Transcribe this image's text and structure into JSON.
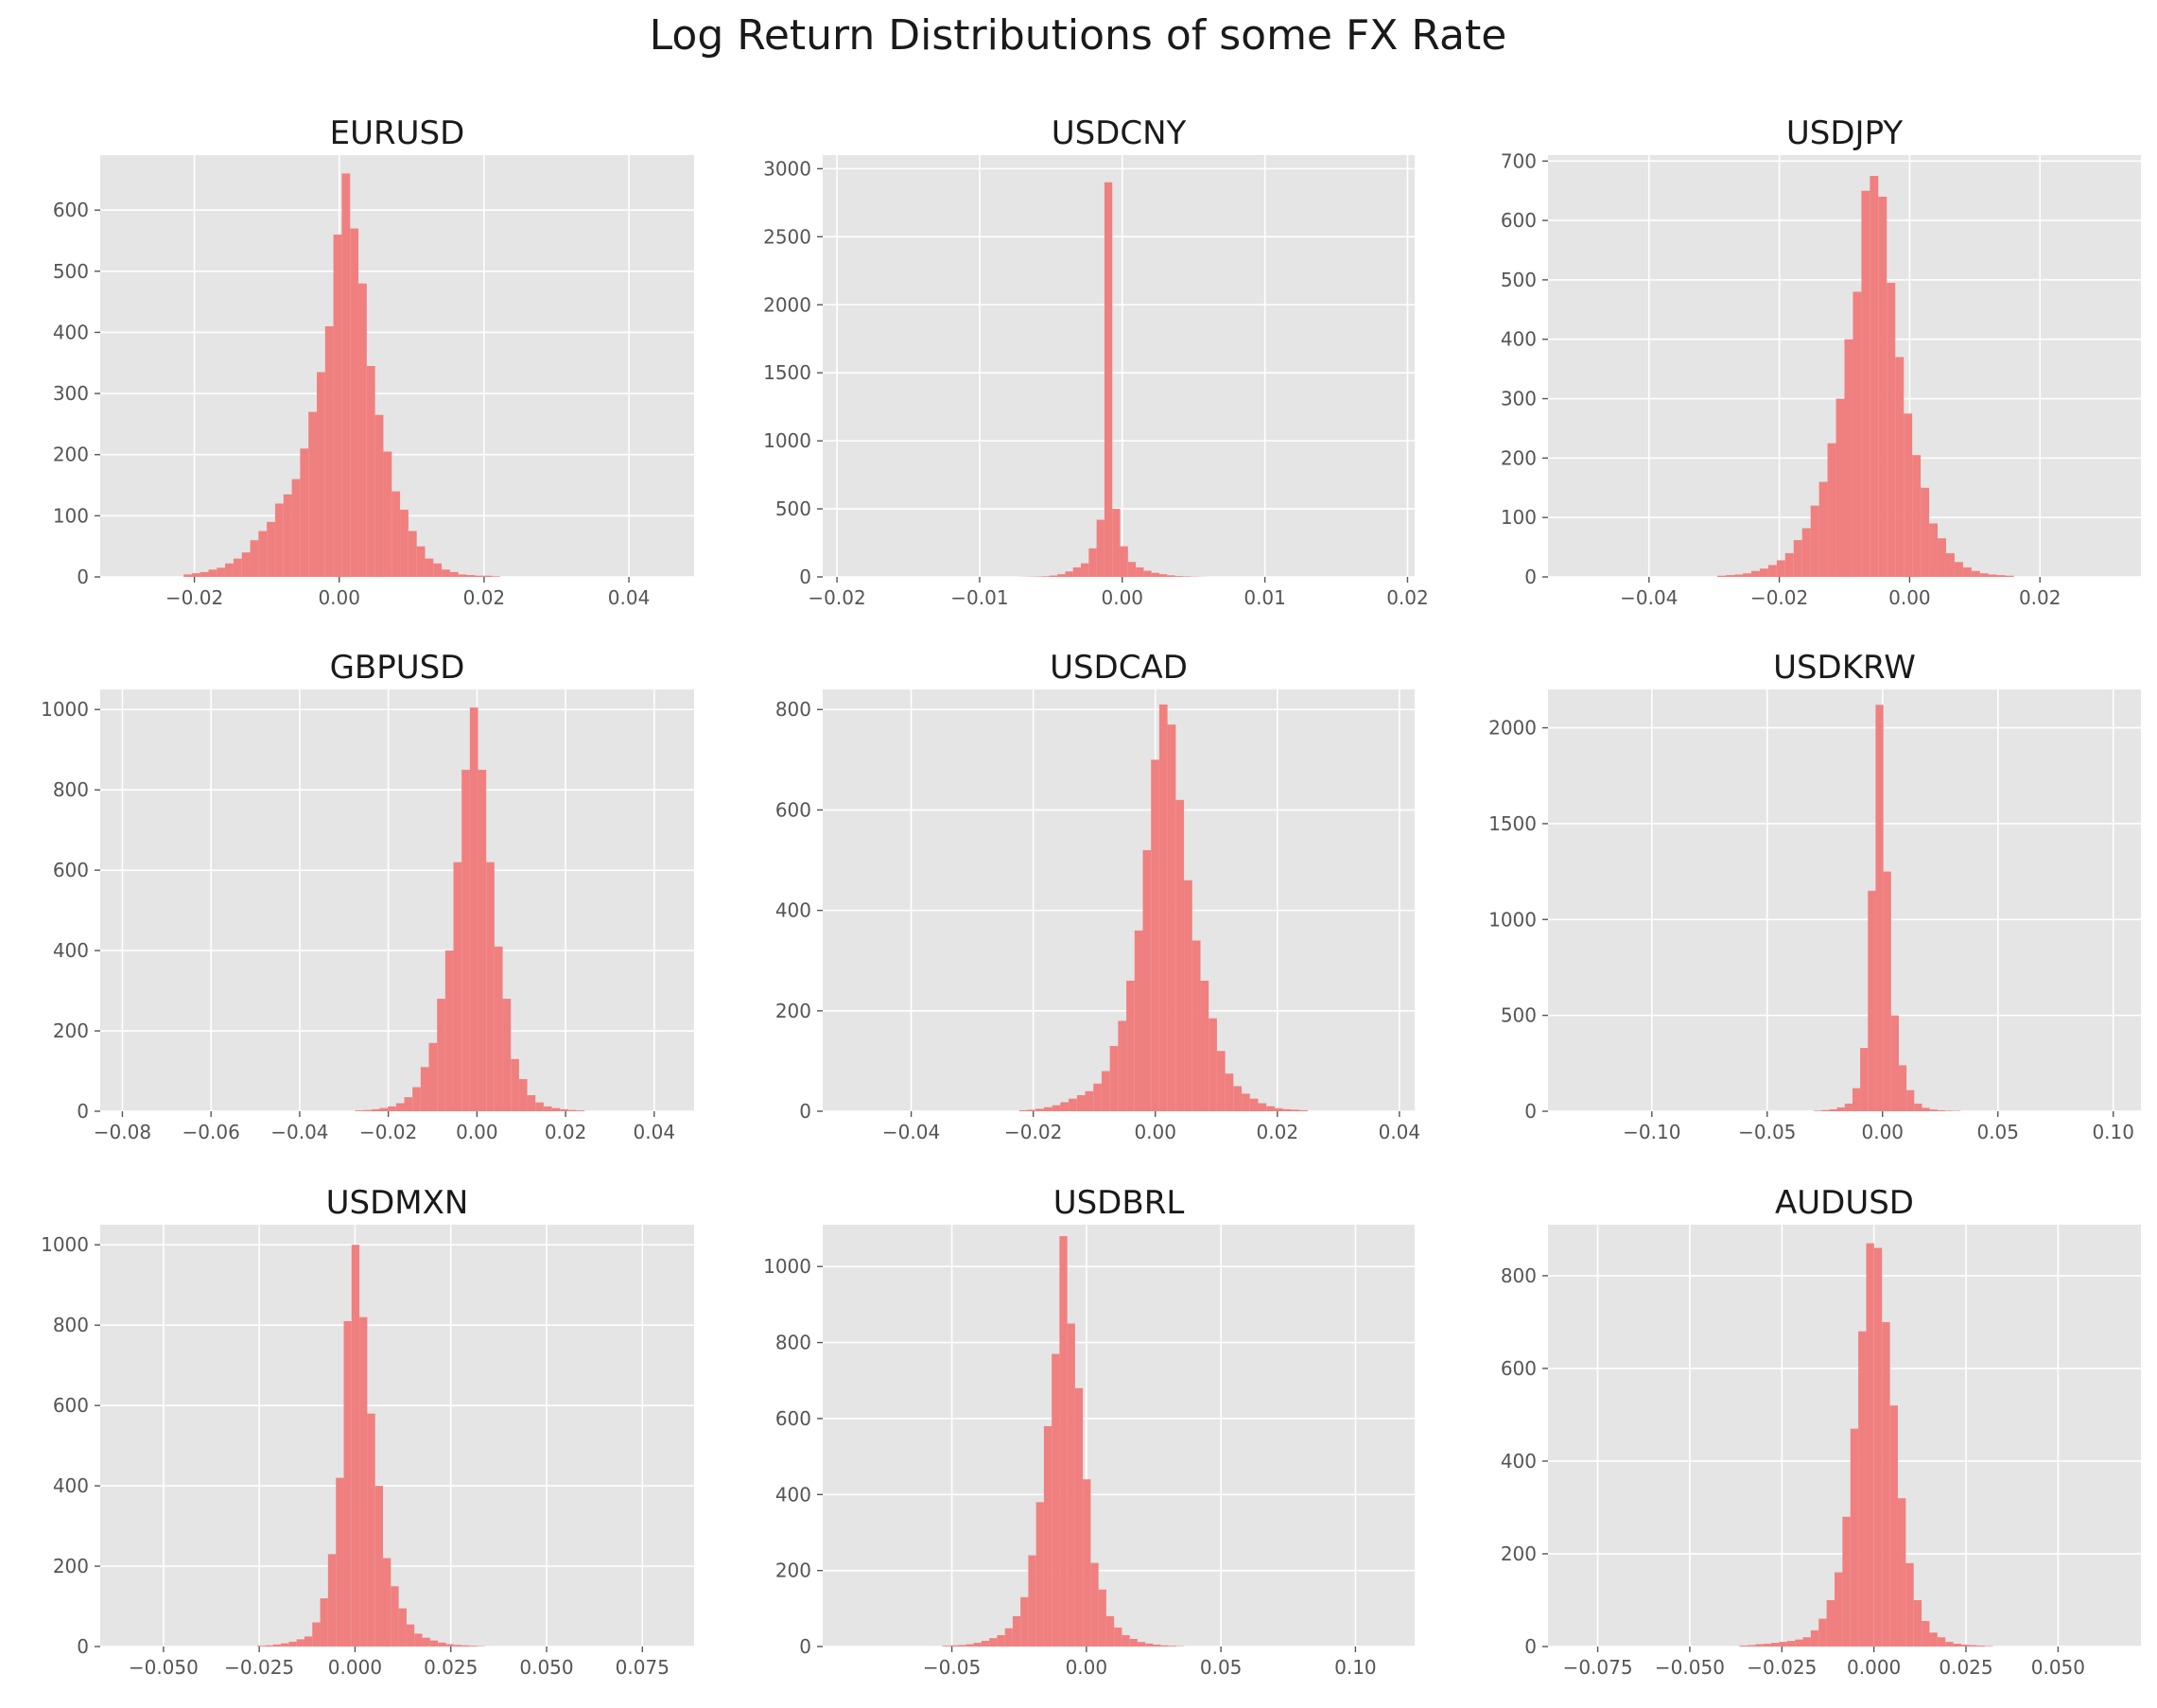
{
  "figure": {
    "title": "Log Return Distributions of some FX Rate",
    "style": "ggplot",
    "bar_color": "#f08080",
    "panel_background": "#e5e5e5",
    "grid_color": "#ffffff"
  },
  "chart_data": [
    {
      "type": "bar",
      "title": "EURUSD",
      "xlim": [
        -0.033,
        0.049
      ],
      "ylim": [
        0,
        690
      ],
      "xticks": [
        -0.02,
        0.0,
        0.02,
        0.04
      ],
      "xtick_labels": [
        "−0.02",
        "0.00",
        "0.02",
        "0.04"
      ],
      "yticks": [
        0,
        100,
        200,
        300,
        400,
        500,
        600
      ],
      "ytick_labels": [
        "0",
        "100",
        "200",
        "300",
        "400",
        "500",
        "600"
      ],
      "bin_start": -0.0215,
      "bin_width": 0.00115,
      "values": [
        4,
        6,
        8,
        12,
        15,
        22,
        30,
        40,
        60,
        75,
        90,
        120,
        135,
        160,
        210,
        270,
        335,
        410,
        560,
        660,
        570,
        480,
        345,
        265,
        205,
        140,
        110,
        75,
        50,
        30,
        22,
        12,
        8,
        4,
        3,
        2,
        2,
        1
      ]
    },
    {
      "type": "bar",
      "title": "USDCNY",
      "xlim": [
        -0.021,
        0.0205
      ],
      "ylim": [
        0,
        3100
      ],
      "xticks": [
        -0.02,
        -0.01,
        0.0,
        0.01,
        0.02
      ],
      "xtick_labels": [
        "−0.02",
        "−0.01",
        "0.00",
        "0.01",
        "0.02"
      ],
      "yticks": [
        0,
        500,
        1000,
        1500,
        2000,
        2500,
        3000
      ],
      "ytick_labels": [
        "0",
        "500",
        "1000",
        "1500",
        "2000",
        "2500",
        "3000"
      ],
      "bin_start": -0.0073,
      "bin_width": 0.00055,
      "values": [
        1,
        2,
        3,
        5,
        10,
        20,
        40,
        70,
        100,
        210,
        420,
        2900,
        500,
        225,
        110,
        70,
        45,
        30,
        20,
        12,
        6,
        4,
        2,
        1
      ]
    },
    {
      "type": "bar",
      "title": "USDJPY",
      "xlim": [
        -0.0555,
        0.0355
      ],
      "ylim": [
        0,
        710
      ],
      "xticks": [
        -0.04,
        -0.02,
        0.0,
        0.02
      ],
      "xtick_labels": [
        "−0.04",
        "−0.02",
        "0.00",
        "0.02"
      ],
      "yticks": [
        0,
        100,
        200,
        300,
        400,
        500,
        600,
        700
      ],
      "ytick_labels": [
        "0",
        "100",
        "200",
        "300",
        "400",
        "500",
        "600",
        "700"
      ],
      "bin_start": -0.0295,
      "bin_width": 0.0013,
      "values": [
        2,
        3,
        4,
        6,
        10,
        14,
        20,
        28,
        40,
        62,
        82,
        120,
        160,
        225,
        300,
        400,
        480,
        650,
        675,
        640,
        495,
        370,
        275,
        205,
        150,
        90,
        65,
        40,
        25,
        16,
        10,
        6,
        4,
        3,
        2
      ]
    },
    {
      "type": "bar",
      "title": "GBPUSD",
      "xlim": [
        -0.085,
        0.049
      ],
      "ylim": [
        0,
        1050
      ],
      "xticks": [
        -0.08,
        -0.06,
        -0.04,
        -0.02,
        0.0,
        0.02,
        0.04
      ],
      "xtick_labels": [
        "−0.08",
        "−0.06",
        "−0.04",
        "−0.02",
        "0.00",
        "0.02",
        "0.04"
      ],
      "yticks": [
        0,
        200,
        400,
        600,
        800,
        1000
      ],
      "ytick_labels": [
        "0",
        "200",
        "400",
        "600",
        "800",
        "1000"
      ],
      "bin_start": -0.0275,
      "bin_width": 0.00185,
      "values": [
        2,
        3,
        5,
        8,
        12,
        20,
        35,
        60,
        110,
        170,
        280,
        400,
        620,
        850,
        1005,
        850,
        620,
        410,
        280,
        130,
        80,
        40,
        22,
        12,
        8,
        5,
        3,
        2
      ]
    },
    {
      "type": "bar",
      "title": "USDCAD",
      "xlim": [
        -0.0545,
        0.0425
      ],
      "ylim": [
        0,
        840
      ],
      "xticks": [
        -0.04,
        -0.02,
        0.0,
        0.02,
        0.04
      ],
      "xtick_labels": [
        "−0.04",
        "−0.02",
        "0.00",
        "0.02",
        "0.04"
      ],
      "yticks": [
        0,
        200,
        400,
        600,
        800
      ],
      "ytick_labels": [
        "0",
        "200",
        "400",
        "600",
        "800"
      ],
      "bin_start": -0.0223,
      "bin_width": 0.00135,
      "values": [
        2,
        3,
        5,
        8,
        12,
        18,
        25,
        32,
        40,
        55,
        80,
        130,
        180,
        260,
        360,
        520,
        700,
        810,
        770,
        620,
        460,
        340,
        260,
        185,
        120,
        75,
        50,
        35,
        25,
        16,
        10,
        6,
        4,
        3,
        2
      ]
    },
    {
      "type": "bar",
      "title": "USDKRW",
      "xlim": [
        -0.145,
        0.112
      ],
      "ylim": [
        0,
        2200
      ],
      "xticks": [
        -0.1,
        -0.05,
        0.0,
        0.05,
        0.1
      ],
      "xtick_labels": [
        "−0.10",
        "−0.05",
        "0.00",
        "0.05",
        "0.10"
      ],
      "yticks": [
        0,
        500,
        1000,
        1500,
        2000
      ],
      "ytick_labels": [
        "0",
        "500",
        "1000",
        "1500",
        "2000"
      ],
      "bin_start": -0.0298,
      "bin_width": 0.00335,
      "values": [
        3,
        6,
        10,
        20,
        40,
        120,
        330,
        1150,
        2120,
        1250,
        500,
        240,
        110,
        40,
        18,
        9,
        5,
        3,
        2
      ]
    },
    {
      "type": "bar",
      "title": "USDMXN",
      "xlim": [
        -0.0665,
        0.0885
      ],
      "ylim": [
        0,
        1050
      ],
      "xticks": [
        -0.05,
        -0.025,
        0.0,
        0.025,
        0.05,
        0.075
      ],
      "xtick_labels": [
        "−0.050",
        "−0.025",
        "0.000",
        "0.025",
        "0.050",
        "0.075"
      ],
      "yticks": [
        0,
        200,
        400,
        600,
        800,
        1000
      ],
      "ytick_labels": [
        "0",
        "200",
        "400",
        "600",
        "800",
        "1000"
      ],
      "bin_start": -0.0255,
      "bin_width": 0.00205,
      "values": [
        2,
        3,
        5,
        8,
        12,
        18,
        25,
        60,
        120,
        230,
        420,
        810,
        1000,
        820,
        580,
        400,
        220,
        150,
        95,
        55,
        32,
        22,
        15,
        10,
        6,
        4,
        3,
        2,
        1
      ]
    },
    {
      "type": "bar",
      "title": "USDBRL",
      "xlim": [
        -0.098,
        0.122
      ],
      "ylim": [
        0,
        1110
      ],
      "xticks": [
        -0.05,
        0.0,
        0.05,
        0.1
      ],
      "xtick_labels": [
        "−0.05",
        "0.00",
        "0.05",
        "0.10"
      ],
      "yticks": [
        0,
        200,
        400,
        600,
        800,
        1000
      ],
      "ytick_labels": [
        "0",
        "200",
        "400",
        "600",
        "800",
        "1000"
      ],
      "bin_start": -0.0535,
      "bin_width": 0.0029,
      "values": [
        2,
        3,
        4,
        6,
        10,
        15,
        22,
        30,
        48,
        80,
        130,
        240,
        380,
        580,
        770,
        1080,
        850,
        680,
        440,
        220,
        150,
        80,
        50,
        30,
        20,
        12,
        8,
        5,
        3,
        2,
        1
      ]
    },
    {
      "type": "bar",
      "title": "AUDUSD",
      "xlim": [
        -0.0885,
        0.0725
      ],
      "ylim": [
        0,
        910
      ],
      "xticks": [
        -0.075,
        -0.05,
        -0.025,
        0.0,
        0.025,
        0.05
      ],
      "xtick_labels": [
        "−0.075",
        "−0.050",
        "−0.025",
        "0.000",
        "0.025",
        "0.050"
      ],
      "yticks": [
        0,
        200,
        400,
        600,
        800
      ],
      "ytick_labels": [
        "0",
        "200",
        "400",
        "600",
        "800"
      ],
      "bin_start": -0.0365,
      "bin_width": 0.00215,
      "values": [
        2,
        3,
        5,
        6,
        8,
        10,
        12,
        15,
        20,
        35,
        60,
        100,
        160,
        280,
        470,
        680,
        870,
        860,
        700,
        520,
        320,
        180,
        100,
        55,
        30,
        20,
        10,
        6,
        4,
        3,
        2,
        1
      ]
    }
  ]
}
